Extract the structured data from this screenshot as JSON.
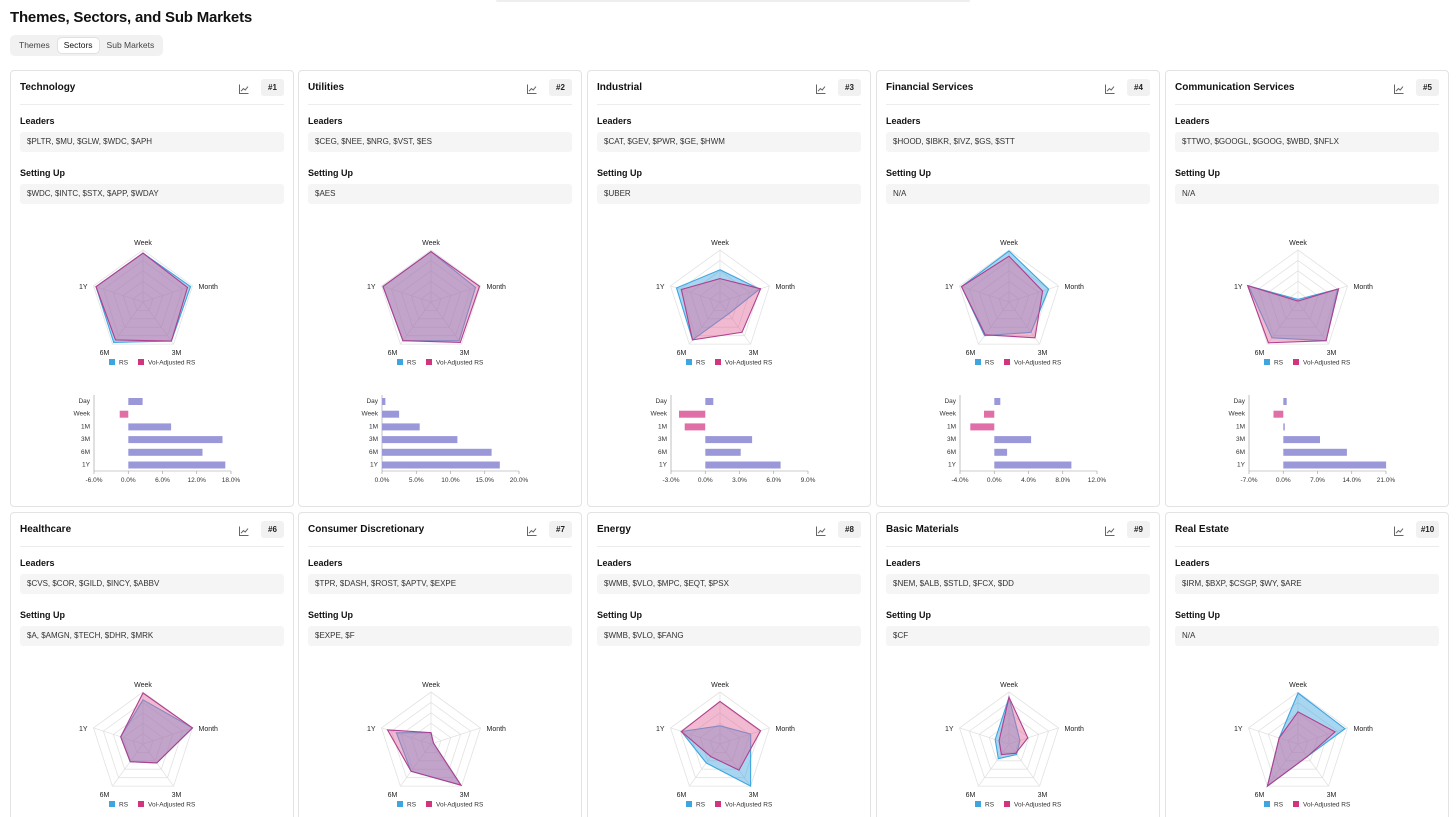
{
  "page": {
    "title": "Themes, Sectors, and Sub Markets"
  },
  "tabs": [
    {
      "label": "Themes",
      "active": false
    },
    {
      "label": "Sectors",
      "active": true
    },
    {
      "label": "Sub Markets",
      "active": false
    }
  ],
  "labels": {
    "leaders": "Leaders",
    "setting_up": "Setting Up"
  },
  "radar_axes": [
    "Week",
    "Month",
    "3M",
    "6M",
    "1Y"
  ],
  "legend": {
    "rs": "RS",
    "vol_adj": "Vol-Adjusted RS"
  },
  "colors": {
    "rs": "#3da5e0",
    "vol_adj": "#e2679a",
    "overlap": "#9b8fcf",
    "bar": "#9b98d9",
    "bar_negative": "#e06fa8"
  },
  "bar_categories": [
    "Day",
    "Week",
    "1M",
    "3M",
    "6M",
    "1Y"
  ],
  "cards": [
    {
      "title": "Technology",
      "rank": "#1",
      "leaders": "$PLTR, $MU, $GLW, $WDC, $APH",
      "setting_up": "$WDC, $INTC, $STX, $APP, $WDAY",
      "radar": {
        "rs": [
          0.94,
          0.96,
          0.93,
          0.96,
          0.95
        ],
        "vol_adj": [
          0.94,
          0.9,
          0.93,
          0.9,
          0.95
        ]
      },
      "bar_ticks": [
        "-6.0%",
        "0.0%",
        "6.0%",
        "12.0%",
        "18.0%"
      ],
      "bar_min": -6,
      "bar_max": 18,
      "bar_values": [
        2.5,
        -1.5,
        7.5,
        16.5,
        13.0,
        17.0
      ]
    },
    {
      "title": "Utilities",
      "rank": "#2",
      "leaders": "$CEG, $NEE, $NRG, $VST, $ES",
      "setting_up": "$AES",
      "radar": {
        "rs": [
          0.97,
          0.9,
          0.92,
          0.92,
          0.97
        ],
        "vol_adj": [
          0.97,
          0.98,
          0.96,
          0.92,
          0.97
        ]
      },
      "bar_ticks": [
        "0.0%",
        "5.0%",
        "10.0%",
        "15.0%",
        "20.0%"
      ],
      "bar_min": 0,
      "bar_max": 20,
      "bar_values": [
        0.5,
        2.5,
        5.5,
        11.0,
        16.0,
        17.2
      ]
    },
    {
      "title": "Industrial",
      "rank": "#3",
      "leaders": "$CAT, $GEV, $PWR, $GE, $HWM",
      "setting_up": "$UBER",
      "radar": {
        "rs": [
          0.62,
          0.8,
          0.28,
          0.9,
          0.88
        ],
        "vol_adj": [
          0.45,
          0.82,
          0.72,
          0.9,
          0.78
        ]
      },
      "bar_ticks": [
        "-3.0%",
        "0.0%",
        "3.0%",
        "6.0%",
        "9.0%"
      ],
      "bar_min": -3,
      "bar_max": 9,
      "bar_values": [
        0.7,
        -2.3,
        -1.8,
        4.1,
        3.1,
        6.6
      ]
    },
    {
      "title": "Financial Services",
      "rank": "#4",
      "leaders": "$HOOD, $IBKR, $IVZ, $GS, $STT",
      "setting_up": "N/A",
      "radar": {
        "rs": [
          0.98,
          0.8,
          0.72,
          0.8,
          0.96
        ],
        "vol_adj": [
          0.88,
          0.68,
          0.85,
          0.78,
          0.96
        ]
      },
      "bar_ticks": [
        "-4.0%",
        "0.0%",
        "4.0%",
        "8.0%",
        "12.0%"
      ],
      "bar_min": -4,
      "bar_max": 12,
      "bar_values": [
        0.7,
        -1.2,
        -2.8,
        4.3,
        1.5,
        9.0
      ]
    },
    {
      "title": "Communication Services",
      "rank": "#5",
      "leaders": "$TTWO, $GOOGL, $GOOG, $WBD, $NFLX",
      "setting_up": "N/A",
      "radar": {
        "rs": [
          0.05,
          0.8,
          0.92,
          0.85,
          1.0
        ],
        "vol_adj": [
          0.02,
          0.82,
          0.92,
          0.97,
          1.02
        ]
      },
      "bar_ticks": [
        "-7.0%",
        "0.0%",
        "7.0%",
        "14.0%",
        "21.0%"
      ],
      "bar_min": -7,
      "bar_max": 21,
      "bar_values": [
        0.7,
        -2.0,
        0.3,
        7.5,
        13.0,
        21.0
      ]
    },
    {
      "title": "Healthcare",
      "rank": "#6",
      "leaders": "$CVS, $COR, $GILD, $INCY, $ABBV",
      "setting_up": "$A, $AMGN, $TECH, $DHR, $MRK",
      "radar": {
        "rs": [
          0.85,
          1.0,
          0.45,
          0.42,
          0.45
        ],
        "vol_adj": [
          0.98,
          1.0,
          0.45,
          0.42,
          0.45
        ]
      }
    },
    {
      "title": "Consumer Discretionary",
      "rank": "#7",
      "leaders": "$TPR, $DASH, $ROST, $APTV, $EXPE",
      "setting_up": "$EXPE, $F",
      "radar": {
        "rs": [
          0.22,
          0.05,
          0.98,
          0.65,
          0.7
        ],
        "vol_adj": [
          0.22,
          0.05,
          0.98,
          0.65,
          0.88
        ]
      }
    },
    {
      "title": "Energy",
      "rank": "#8",
      "leaders": "$WMB, $VLO, $MPC, $EQT, $PSX",
      "setting_up": "$WMB, $VLO, $FANG",
      "radar": {
        "rs": [
          0.35,
          0.62,
          1.0,
          0.45,
          0.78
        ],
        "vol_adj": [
          0.82,
          0.82,
          0.62,
          0.3,
          0.78
        ]
      }
    },
    {
      "title": "Basic Materials",
      "rank": "#9",
      "leaders": "$NEM, $ALB, $STLD, $FCX, $DD",
      "setting_up": "$CF",
      "radar": {
        "rs": [
          0.9,
          0.22,
          0.25,
          0.35,
          0.28
        ],
        "vol_adj": [
          0.9,
          0.38,
          0.22,
          0.25,
          0.2
        ]
      }
    },
    {
      "title": "Real Estate",
      "rank": "#10",
      "leaders": "$IRM, $BXP, $CSGP, $WY, $ARE",
      "setting_up": "N/A",
      "radar": {
        "rs": [
          0.98,
          0.95,
          0.3,
          1.0,
          0.38
        ],
        "vol_adj": [
          0.62,
          0.75,
          0.3,
          1.0,
          0.38
        ]
      }
    }
  ]
}
